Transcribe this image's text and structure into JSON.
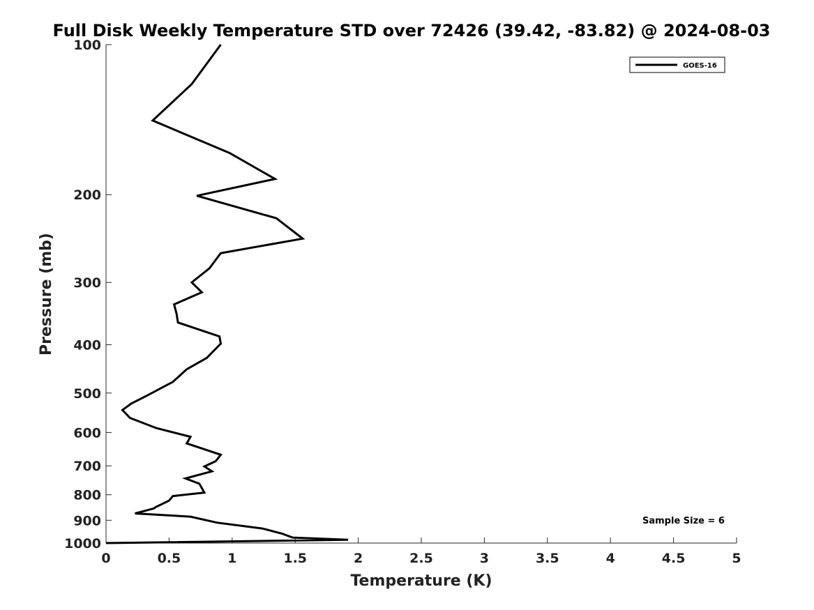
{
  "chart_data": {
    "type": "line",
    "title": "Full Disk Weekly Temperature STD over 72426 (39.42, -83.82) @ 2024-08-03",
    "xlabel": "Temperature (K)",
    "ylabel": "Pressure (mb)",
    "xlim": [
      0,
      5
    ],
    "ylim": [
      1000,
      100
    ],
    "yscale": "log",
    "grid": false,
    "legend_position": "top-right",
    "x_ticks": [
      {
        "value": 0,
        "label": "0"
      },
      {
        "value": 0.5,
        "label": "0.5"
      },
      {
        "value": 1,
        "label": "1"
      },
      {
        "value": 1.5,
        "label": "1.5"
      },
      {
        "value": 2,
        "label": "2"
      },
      {
        "value": 2.5,
        "label": "2.5"
      },
      {
        "value": 3,
        "label": "3"
      },
      {
        "value": 3.5,
        "label": "3.5"
      },
      {
        "value": 4,
        "label": "4"
      },
      {
        "value": 4.5,
        "label": "4.5"
      },
      {
        "value": 5,
        "label": "5"
      }
    ],
    "y_ticks": [
      {
        "value": 100,
        "label": "100"
      },
      {
        "value": 200,
        "label": "200"
      },
      {
        "value": 300,
        "label": "300"
      },
      {
        "value": 400,
        "label": "400"
      },
      {
        "value": 500,
        "label": "500"
      },
      {
        "value": 600,
        "label": "600"
      },
      {
        "value": 700,
        "label": "700"
      },
      {
        "value": 800,
        "label": "800"
      },
      {
        "value": 900,
        "label": "900"
      },
      {
        "value": 1000,
        "label": "1000"
      }
    ],
    "series": [
      {
        "name": "GOES-16",
        "color": "#000000",
        "x": [
          0.91,
          0.68,
          0.37,
          0.98,
          1.34,
          0.72,
          1.35,
          1.56,
          0.91,
          0.82,
          0.68,
          0.76,
          0.54,
          0.56,
          0.57,
          0.9,
          0.91,
          0.8,
          0.64,
          0.53,
          0.33,
          0.2,
          0.13,
          0.19,
          0.4,
          0.67,
          0.64,
          0.91,
          0.87,
          0.78,
          0.84,
          0.63,
          0.74,
          0.78,
          0.53,
          0.5,
          0.39,
          0.38,
          0.23,
          0.67,
          0.88,
          1.24,
          1.4,
          1.48,
          1.92,
          0.0
        ],
        "y": [
          100,
          120,
          142,
          165,
          186,
          201,
          223,
          245,
          262,
          281,
          300,
          314,
          332,
          347,
          361,
          385,
          398,
          425,
          448,
          475,
          505,
          525,
          541,
          561,
          588,
          612,
          631,
          665,
          685,
          702,
          718,
          742,
          760,
          792,
          805,
          822,
          848,
          852,
          872,
          885,
          910,
          935,
          958,
          975,
          985,
          1000
        ]
      }
    ],
    "annotations": [
      {
        "text": "Sample Size = 6"
      }
    ]
  }
}
